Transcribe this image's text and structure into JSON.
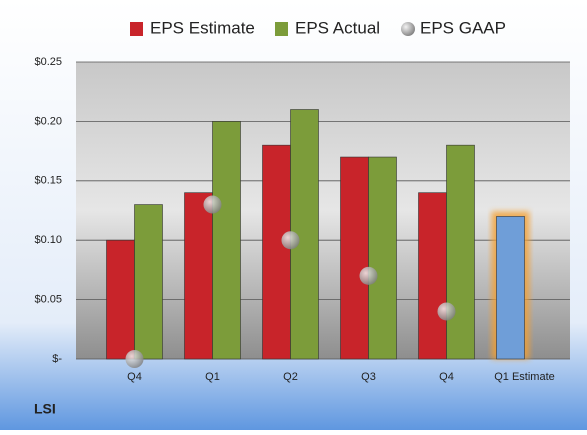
{
  "chart_data": {
    "type": "bar",
    "footer": "LSI",
    "categories": [
      "Q4",
      "Q1",
      "Q2",
      "Q3",
      "Q4",
      "Q1 Estimate"
    ],
    "series": [
      {
        "name": "EPS Estimate",
        "color": "#c8242a",
        "values": [
          0.1,
          0.14,
          0.18,
          0.17,
          0.14,
          0.12
        ],
        "point_colors": [
          "#c8242a",
          "#c8242a",
          "#c8242a",
          "#c8242a",
          "#c8242a",
          "#6f9ed8"
        ],
        "glow": [
          null,
          null,
          null,
          null,
          null,
          "#f5a030"
        ]
      },
      {
        "name": "EPS Actual",
        "color": "#7c9c3a",
        "values": [
          0.13,
          0.2,
          0.21,
          0.17,
          0.18,
          null
        ]
      },
      {
        "name": "EPS GAAP",
        "color": "#9a9a9a",
        "marker": "circle",
        "values": [
          0.0,
          0.13,
          0.1,
          0.07,
          0.04,
          null
        ]
      }
    ],
    "ylim": [
      0,
      0.25
    ],
    "yticks": [
      {
        "value": 0,
        "label": "$-"
      },
      {
        "value": 0.05,
        "label": "$0.05"
      },
      {
        "value": 0.1,
        "label": "$0.10"
      },
      {
        "value": 0.15,
        "label": "$0.15"
      },
      {
        "value": 0.2,
        "label": "$0.20"
      },
      {
        "value": 0.25,
        "label": "$0.25"
      }
    ],
    "grid": true
  }
}
